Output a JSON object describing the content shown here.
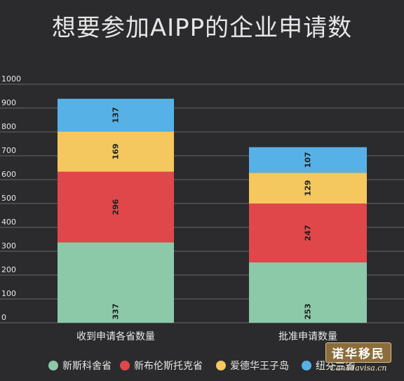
{
  "colors": {
    "series": [
      "#8cc9a9",
      "#e0474b",
      "#f4c85e",
      "#56b2e6"
    ]
  },
  "chart_data": {
    "type": "bar",
    "stacked": true,
    "title": "想要参加AIPP的企业申请数",
    "categories": [
      "收到申请各省数量",
      "批准申请数量"
    ],
    "series": [
      {
        "name": "新斯科舍省",
        "values": [
          337,
          253
        ]
      },
      {
        "name": "新布伦斯托克省",
        "values": [
          296,
          247
        ]
      },
      {
        "name": "爱德华王子岛",
        "values": [
          169,
          129
        ]
      },
      {
        "name": "纽芬兰省",
        "values": [
          137,
          107
        ]
      }
    ],
    "yticks": [
      0,
      100,
      200,
      300,
      400,
      500,
      600,
      700,
      800,
      900,
      1000
    ],
    "ylim": [
      0,
      1000
    ],
    "grid": true,
    "legend": "bottom"
  },
  "watermark": {
    "text": "诺华移民",
    "subtext": "Canadavisa.cn"
  }
}
